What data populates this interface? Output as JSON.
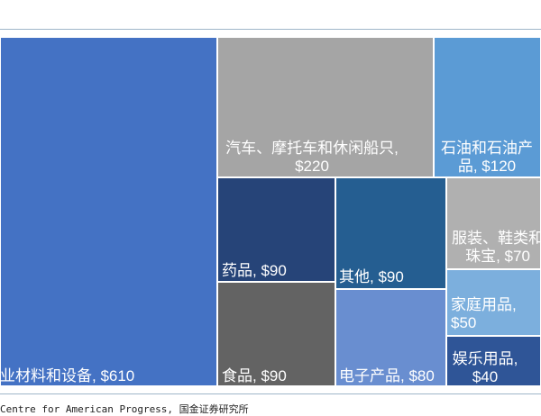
{
  "chart_data": {
    "type": "treemap",
    "title": "",
    "colors": {
      "text": "#ffffff",
      "tile_border": "#ffffff",
      "frame_line": "#9fb6c9",
      "source_text": "#222222"
    },
    "tiles": [
      {
        "label": "业材料和设备, $610",
        "value": 610,
        "color": "#4472c4",
        "lines": [
          "业材料和设备, $610"
        ]
      },
      {
        "label": "汽车、摩托车和休闲船只, $220",
        "value": 220,
        "color": "#a5a5a5",
        "lines": [
          "汽车、摩托车和休闲船只,",
          "$220"
        ]
      },
      {
        "label": "石油和石油产品, $120",
        "value": 120,
        "color": "#5b9bd5",
        "lines": [
          "石油和石油产",
          "品, $120"
        ]
      },
      {
        "label": "药品, $90",
        "value": 90,
        "color": "#264478",
        "lines": [
          "药品, $90"
        ]
      },
      {
        "label": "其他, $90",
        "value": 90,
        "color": "#255e91",
        "lines": [
          "其他, $90"
        ]
      },
      {
        "label": "服装、鞋类和珠宝, $70",
        "value": 70,
        "color": "#b0b0b0",
        "lines": [
          "服装、鞋类和",
          "珠宝, $70"
        ]
      },
      {
        "label": "家庭用品, $50",
        "value": 50,
        "color": "#7cafdd",
        "lines": [
          "家庭用品,",
          "$50"
        ]
      },
      {
        "label": "食品, $90",
        "value": 90,
        "color": "#636363",
        "lines": [
          "食品, $90"
        ]
      },
      {
        "label": "电子产品, $80",
        "value": 80,
        "color": "#698ed0",
        "lines": [
          "电子产品, $80"
        ]
      },
      {
        "label": "娱乐用品, $40",
        "value": 40,
        "color": "#2f5597",
        "lines": [
          "娱乐用品,",
          "$40"
        ]
      }
    ]
  },
  "source_text": "Centre for American Progress, 国金证券研究所"
}
